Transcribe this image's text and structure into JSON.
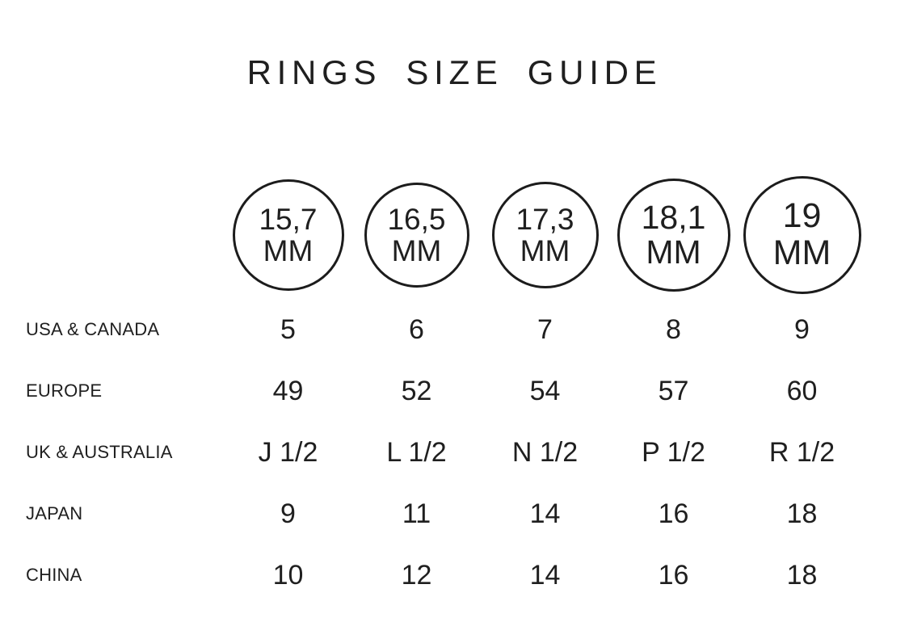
{
  "title": "RINGS SIZE GUIDE",
  "rings": [
    {
      "value": "15,7",
      "unit": "MM"
    },
    {
      "value": "16,5",
      "unit": "MM"
    },
    {
      "value": "17,3",
      "unit": "MM"
    },
    {
      "value": "18,1",
      "unit": "MM"
    },
    {
      "value": "19",
      "unit": "MM"
    }
  ],
  "colors": {
    "text": "#1f1f1f",
    "circle_stroke": "#1c1c1c",
    "background": "#ffffff"
  },
  "chart_data": {
    "type": "table",
    "title": "RINGS SIZE GUIDE",
    "column_headers_mm": [
      "15,7 MM",
      "16,5 MM",
      "17,3 MM",
      "18,1 MM",
      "19 MM"
    ],
    "rows": [
      {
        "label": "USA & CANADA",
        "values": [
          "5",
          "6",
          "7",
          "8",
          "9"
        ]
      },
      {
        "label": "EUROPE",
        "values": [
          "49",
          "52",
          "54",
          "57",
          "60"
        ]
      },
      {
        "label": "UK & AUSTRALIA",
        "values": [
          "J 1/2",
          "L 1/2",
          "N 1/2",
          "P 1/2",
          "R 1/2"
        ]
      },
      {
        "label": "JAPAN",
        "values": [
          "9",
          "11",
          "14",
          "16",
          "18"
        ]
      },
      {
        "label": "CHINA",
        "values": [
          "10",
          "12",
          "14",
          "16",
          "18"
        ]
      }
    ]
  }
}
